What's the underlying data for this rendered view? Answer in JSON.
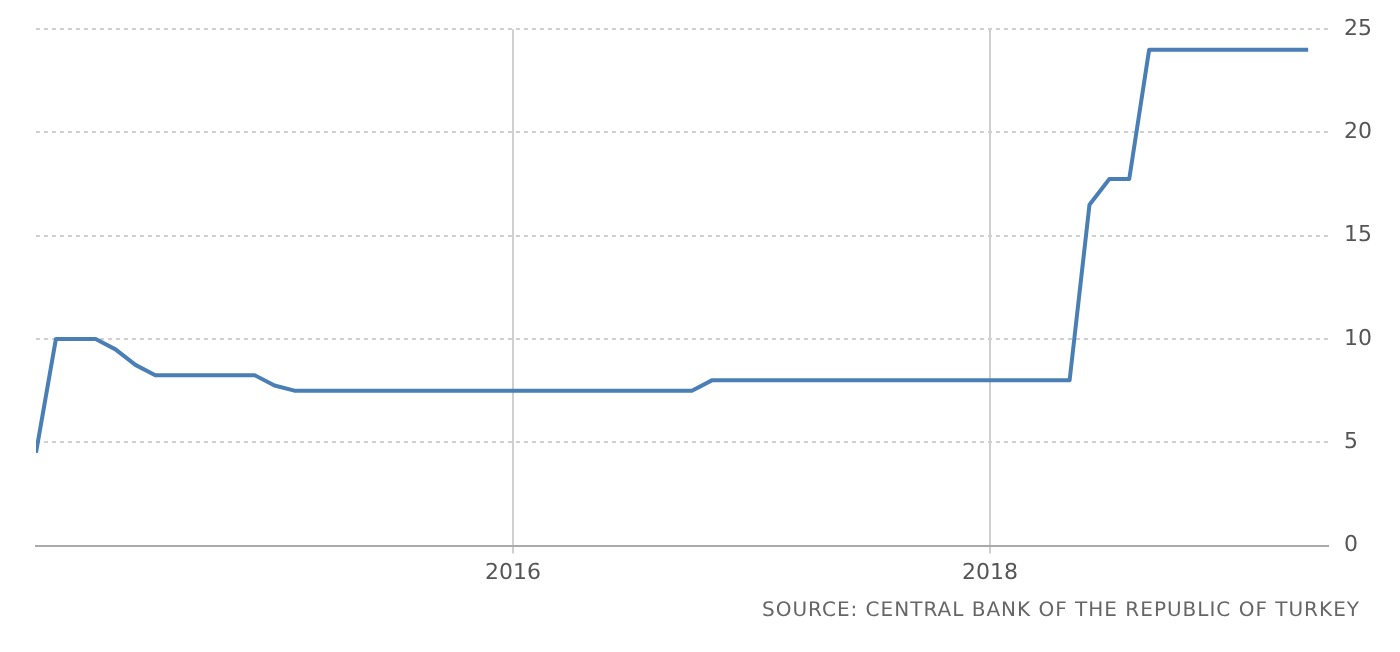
{
  "chart_data": {
    "type": "line",
    "x": [
      "2014-01",
      "2014-02",
      "2014-04",
      "2014-05",
      "2014-06",
      "2014-07",
      "2014-12",
      "2015-01",
      "2015-02",
      "2016-10",
      "2016-11",
      "2018-05",
      "2018-06",
      "2018-07",
      "2018-08",
      "2018-09",
      "2019-05"
    ],
    "series": [
      {
        "color": "#4a7fb5",
        "values": [
          4.5,
          10,
          10,
          9.5,
          8.75,
          8.25,
          8.25,
          7.75,
          7.5,
          7.5,
          8,
          8,
          16.5,
          17.75,
          17.75,
          24,
          24
        ]
      }
    ],
    "xlim": [
      "2014-01",
      "2019-06"
    ],
    "xticks": [
      "2016",
      "2018"
    ],
    "ylim": [
      0,
      25
    ],
    "yticks": [
      0,
      5,
      10,
      15,
      20,
      25
    ],
    "grid": true,
    "legend": false,
    "marker": "none",
    "line_style": "solid",
    "annotations": [
      "SOURCE: CENTRAL BANK OF THE REPUBLIC OF TURKEY"
    ]
  }
}
